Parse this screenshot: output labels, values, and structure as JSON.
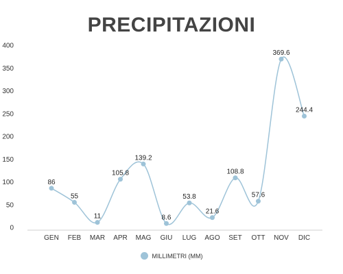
{
  "chart_data": {
    "type": "line",
    "title": "PRECIPITAZIONI",
    "categories": [
      "GEN",
      "FEB",
      "MAR",
      "APR",
      "MAG",
      "GIU",
      "LUG",
      "AGO",
      "SET",
      "OTT",
      "NOV",
      "DIC"
    ],
    "series": [
      {
        "name": "MILLIMETRI (MM)",
        "values": [
          86,
          55,
          11,
          105.8,
          139.2,
          8.6,
          53.8,
          21.6,
          108.8,
          57.6,
          369.6,
          244.4
        ],
        "color": "#9ec3d8"
      }
    ],
    "data_labels": [
      "86",
      "55",
      "11",
      "105.8",
      "139.2",
      "8.6",
      "53.8",
      "21.6",
      "108.8",
      "57.6",
      "369.6",
      "244.4"
    ],
    "yticks": [
      "0",
      "50",
      "100",
      "150",
      "200",
      "250",
      "300",
      "350",
      "400"
    ],
    "ylim": [
      0,
      400
    ],
    "smooth": true,
    "grid": false,
    "legend_position": "bottom-center",
    "colors": {
      "line": "#9ec3d8",
      "marker": "#9ec3d8",
      "title": "#444444",
      "axis": "#d0d0d0"
    }
  }
}
